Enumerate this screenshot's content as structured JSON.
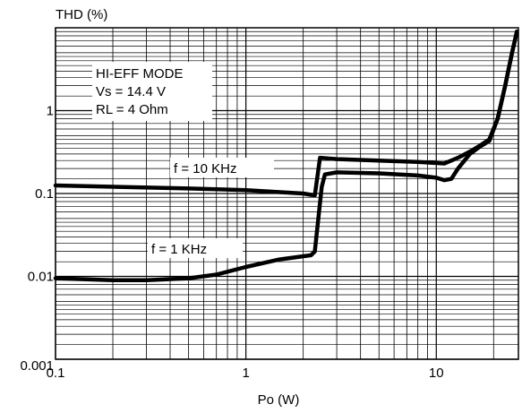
{
  "chart_data": {
    "type": "line",
    "ylabel": "THD (%)",
    "xlabel": "Po (W)",
    "x_scale": "log",
    "y_scale": "log",
    "xlim": [
      0.1,
      27
    ],
    "ylim": [
      0.001,
      10
    ],
    "x_ticks": [
      {
        "value": 0.1,
        "label": "0.1"
      },
      {
        "value": 1,
        "label": "1"
      },
      {
        "value": 10,
        "label": "10"
      }
    ],
    "y_ticks": [
      {
        "value": 0.001,
        "label": "0.001"
      },
      {
        "value": 0.01,
        "label": "0.01"
      },
      {
        "value": 0.1,
        "label": "0.1"
      },
      {
        "value": 1,
        "label": "1"
      }
    ],
    "grid": true,
    "conditions": [
      "HI-EFF MODE",
      "Vs = 14.4 V",
      "RL = 4 Ohm"
    ],
    "series": [
      {
        "name": "f = 10 KHz",
        "points": [
          [
            0.1,
            0.125
          ],
          [
            0.5,
            0.115
          ],
          [
            1,
            0.11
          ],
          [
            2,
            0.1
          ],
          [
            2.3,
            0.095
          ],
          [
            2.45,
            0.27
          ],
          [
            3,
            0.26
          ],
          [
            5,
            0.25
          ],
          [
            8,
            0.24
          ],
          [
            11,
            0.23
          ],
          [
            13,
            0.27
          ],
          [
            15,
            0.32
          ],
          [
            17,
            0.38
          ],
          [
            19,
            0.45
          ],
          [
            21,
            0.8
          ],
          [
            23,
            2.0
          ],
          [
            25,
            5.0
          ],
          [
            26.5,
            9.0
          ]
        ]
      },
      {
        "name": "f = 1 KHz",
        "points": [
          [
            0.1,
            0.0095
          ],
          [
            0.2,
            0.009
          ],
          [
            0.3,
            0.009
          ],
          [
            0.5,
            0.0095
          ],
          [
            0.7,
            0.0105
          ],
          [
            1,
            0.013
          ],
          [
            1.5,
            0.016
          ],
          [
            2.2,
            0.018
          ],
          [
            2.3,
            0.02
          ],
          [
            2.5,
            0.12
          ],
          [
            2.6,
            0.17
          ],
          [
            3,
            0.18
          ],
          [
            5,
            0.175
          ],
          [
            8,
            0.165
          ],
          [
            10,
            0.155
          ],
          [
            11,
            0.145
          ],
          [
            12,
            0.15
          ],
          [
            13,
            0.2
          ],
          [
            15,
            0.3
          ],
          [
            17,
            0.37
          ],
          [
            19,
            0.43
          ],
          [
            21,
            0.8
          ],
          [
            23,
            2.0
          ],
          [
            25,
            5.0
          ],
          [
            26.5,
            9.0
          ]
        ]
      }
    ],
    "annotations": [
      {
        "text": "f = 10 KHz",
        "series": "f = 10 KHz"
      },
      {
        "text": "f = 1 KHz",
        "series": "f = 1 KHz"
      }
    ]
  }
}
